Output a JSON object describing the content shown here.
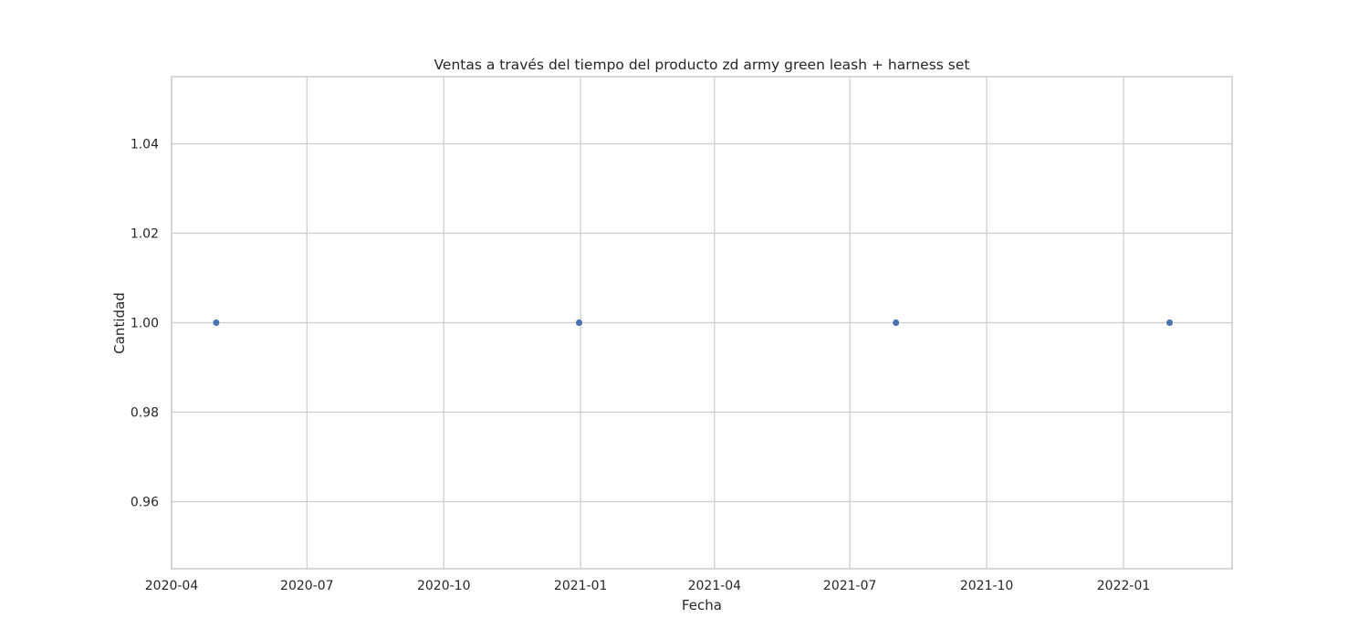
{
  "chart_data": {
    "type": "scatter",
    "title": "Ventas a través del tiempo del producto zd army green leash + harness set",
    "xlabel": "Fecha",
    "ylabel": "Cantidad",
    "x_type": "date",
    "xlim": [
      "2020-04-01",
      "2022-03-15"
    ],
    "ylim": [
      0.945,
      1.055
    ],
    "x_ticks": [
      {
        "value": "2020-04-01",
        "label": "2020-04"
      },
      {
        "value": "2020-07-01",
        "label": "2020-07"
      },
      {
        "value": "2020-10-01",
        "label": "2020-10"
      },
      {
        "value": "2021-01-01",
        "label": "2021-01"
      },
      {
        "value": "2021-04-01",
        "label": "2021-04"
      },
      {
        "value": "2021-07-01",
        "label": "2021-07"
      },
      {
        "value": "2021-10-01",
        "label": "2021-10"
      },
      {
        "value": "2022-01-01",
        "label": "2022-01"
      }
    ],
    "y_ticks": [
      {
        "value": 0.96,
        "label": "0.96"
      },
      {
        "value": 0.98,
        "label": "0.98"
      },
      {
        "value": 1.0,
        "label": "1.00"
      },
      {
        "value": 1.02,
        "label": "1.02"
      },
      {
        "value": 1.04,
        "label": "1.04"
      }
    ],
    "grid": true,
    "series": [
      {
        "color": "#4c72b0",
        "points": [
          {
            "x": "2020-05-01",
            "y": 1
          },
          {
            "x": "2020-12-31",
            "y": 1
          },
          {
            "x": "2021-08-01",
            "y": 1
          },
          {
            "x": "2022-02-01",
            "y": 1
          }
        ]
      }
    ]
  }
}
